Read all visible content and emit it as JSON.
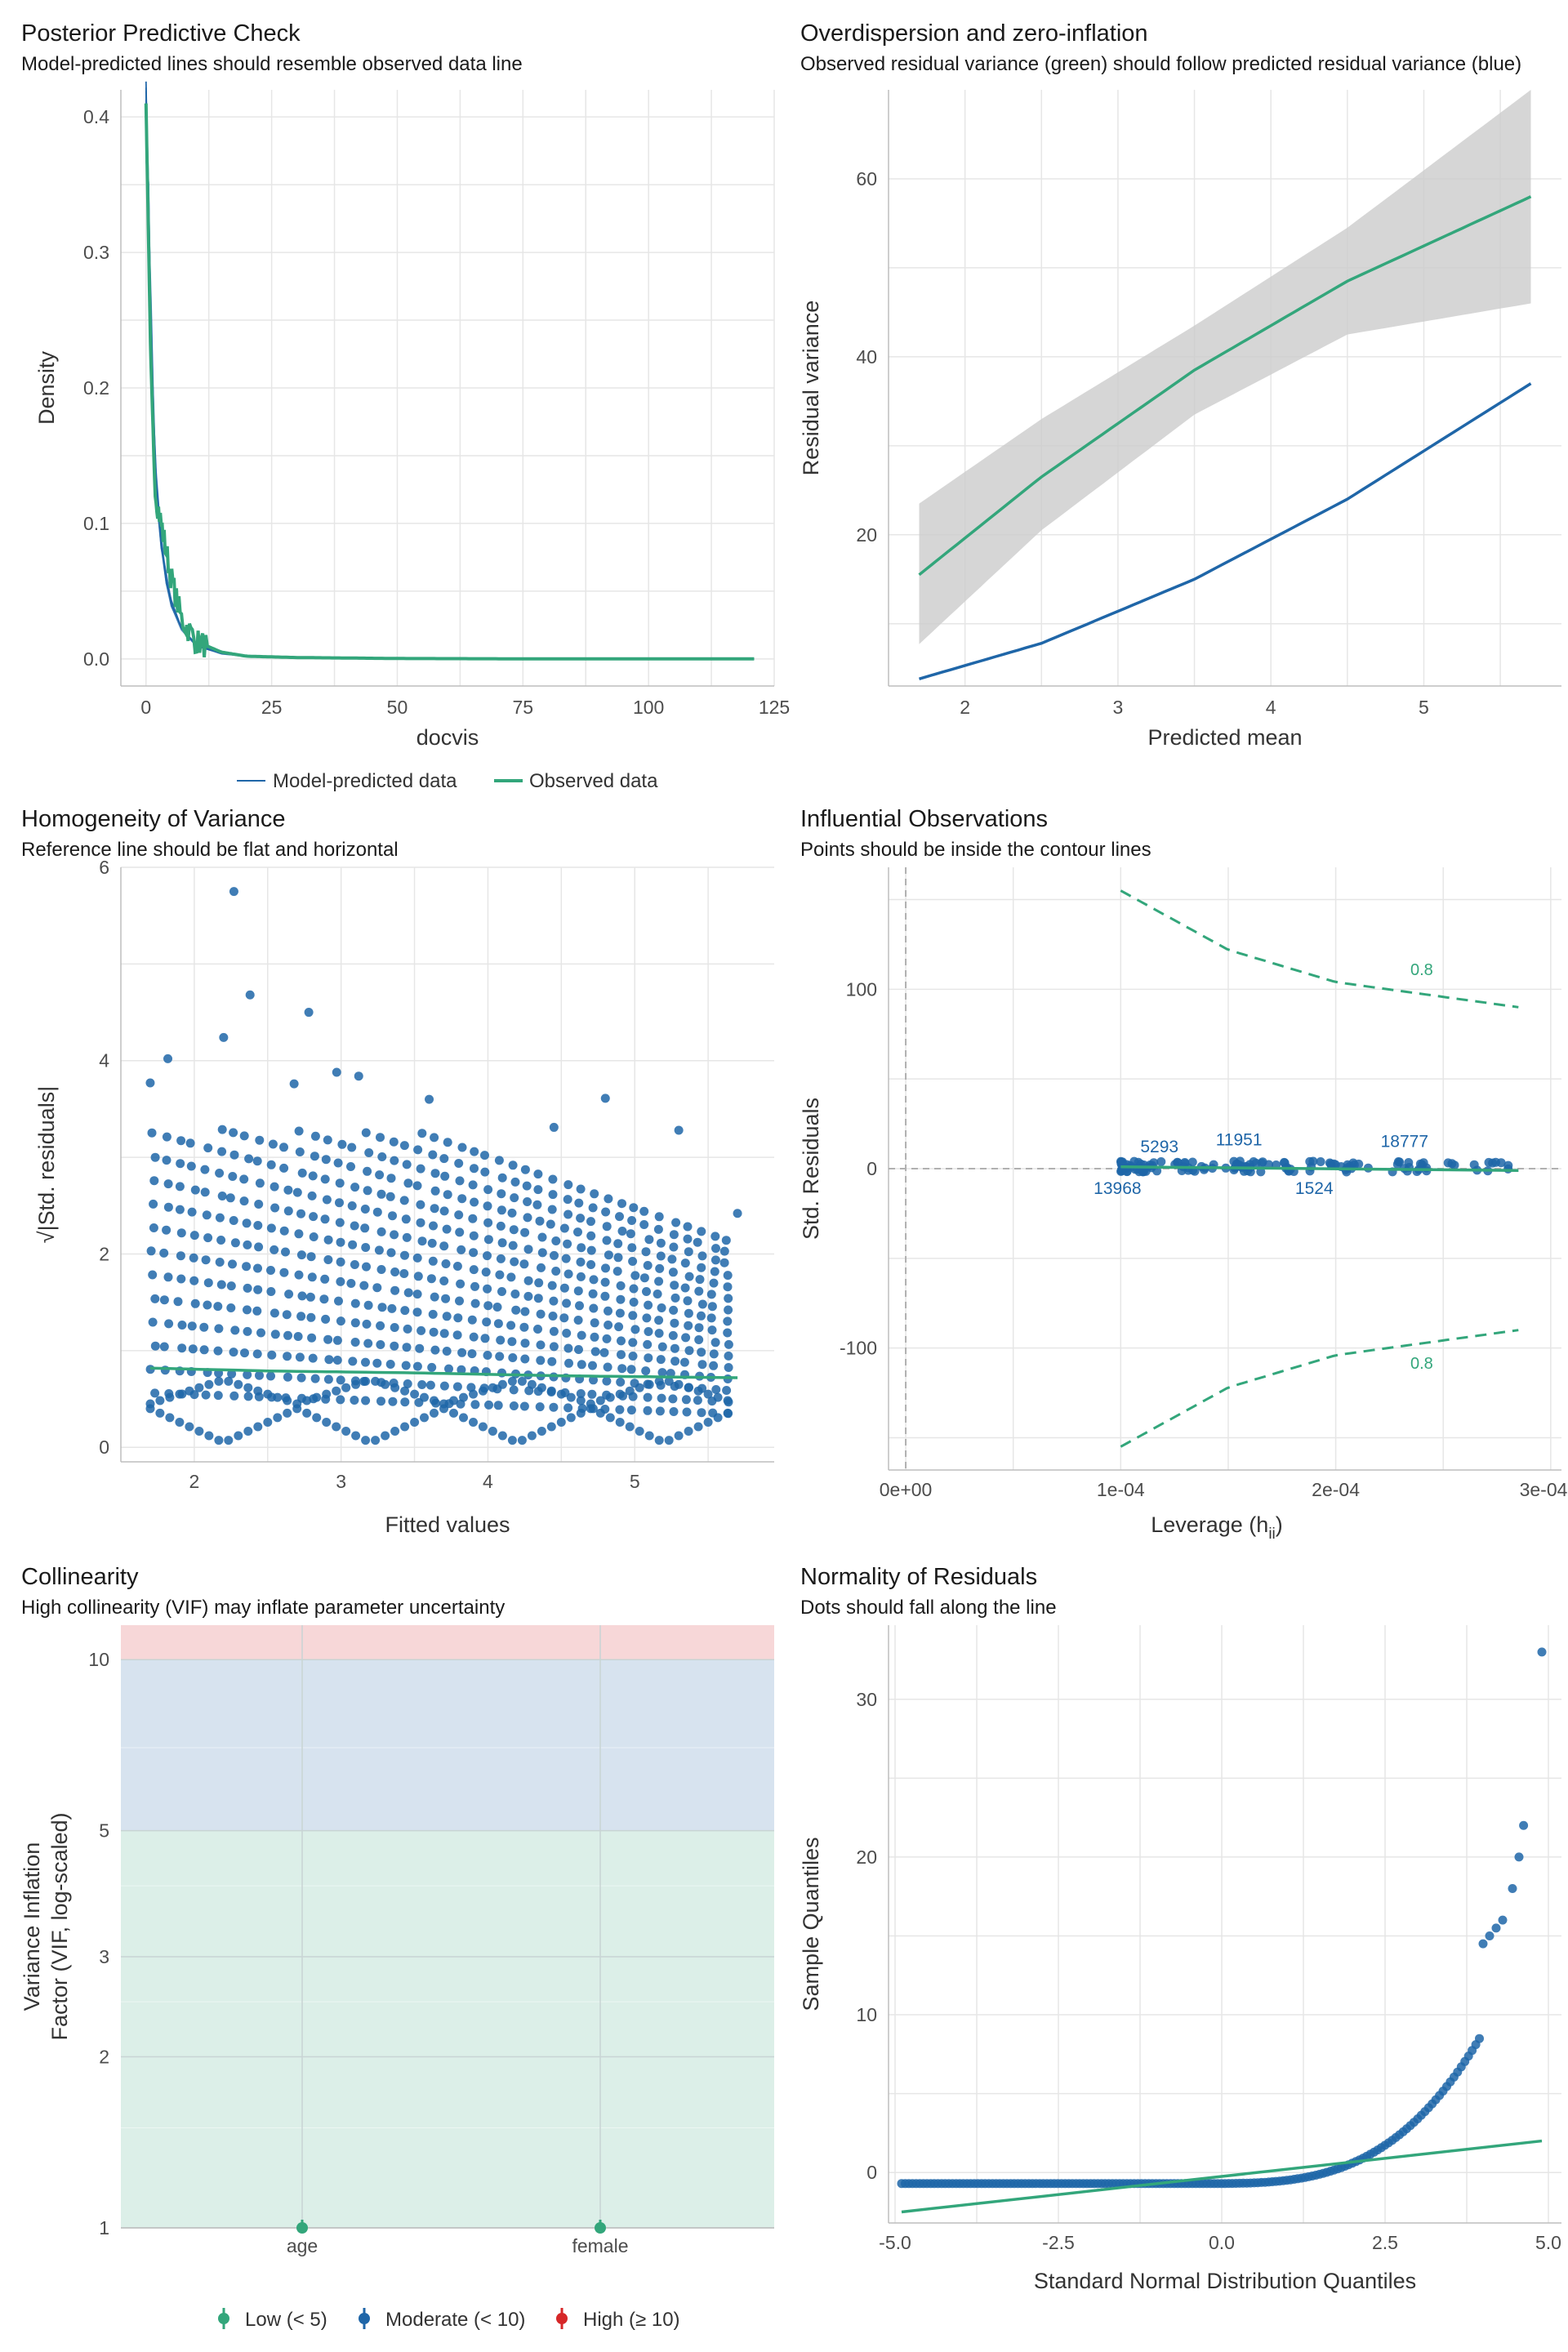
{
  "colors": {
    "blue": "#1f66a8",
    "green": "#33a67b",
    "grey_band": "#cccccc",
    "red": "#d62728"
  },
  "chart_data": [
    {
      "id": "ppc",
      "type": "line",
      "title": "Posterior Predictive Check",
      "subtitle": "Model-predicted lines should resemble observed data line",
      "xlabel": "docvis",
      "ylabel": "Density",
      "xlim": [
        -5,
        125
      ],
      "ylim": [
        -0.02,
        0.42
      ],
      "xticks": [
        "0",
        "25",
        "50",
        "75",
        "100",
        "125"
      ],
      "yticks": [
        "0.0",
        "0.1",
        "0.2",
        "0.3",
        "0.4"
      ],
      "series": [
        {
          "name": "Model-predicted data",
          "x": [
            0,
            0.5,
            1,
            1.5,
            2,
            3,
            4,
            5,
            7,
            10,
            15,
            20,
            30,
            50,
            80,
            121
          ],
          "y": [
            0.4,
            0.33,
            0.25,
            0.18,
            0.13,
            0.085,
            0.06,
            0.042,
            0.022,
            0.01,
            0.004,
            0.002,
            0.0008,
            0.0002,
            0.0,
            0.0
          ]
        },
        {
          "name": "Observed data",
          "x": [
            0,
            0.5,
            1,
            1.5,
            2,
            3,
            4,
            5,
            7,
            10,
            15,
            20,
            30,
            50,
            80,
            121
          ],
          "y": [
            0.41,
            0.31,
            0.21,
            0.15,
            0.12,
            0.1,
            0.08,
            0.06,
            0.03,
            0.013,
            0.005,
            0.002,
            0.001,
            0.0003,
            0.0,
            0.0
          ]
        }
      ],
      "legend": [
        "Model-predicted data",
        "Observed data"
      ]
    },
    {
      "id": "overdispersion",
      "type": "line",
      "title": "Overdispersion and zero-inflation",
      "subtitle": "Observed residual variance (green) should follow predicted residual variance (blue)",
      "xlabel": "Predicted mean",
      "ylabel": "Residual variance",
      "xlim": [
        1.5,
        5.9
      ],
      "ylim": [
        3,
        70
      ],
      "xticks": [
        "2",
        "3",
        "4",
        "5"
      ],
      "yticks": [
        "20",
        "40",
        "60"
      ],
      "series": [
        {
          "name": "Observed residual variance",
          "x": [
            1.7,
            2.5,
            3.5,
            4.5,
            5.7
          ],
          "y": [
            15.5,
            26.5,
            38.5,
            48.5,
            58
          ]
        },
        {
          "name": "Predicted residual variance",
          "x": [
            1.7,
            2.5,
            3.5,
            4.5,
            5.7
          ],
          "y": [
            3.8,
            7.8,
            15.0,
            24.0,
            37.0
          ]
        }
      ],
      "ci_band": {
        "x": [
          1.7,
          2.5,
          3.5,
          4.5,
          5.7
        ],
        "lower": [
          7.7,
          20.5,
          33.5,
          42.5,
          46.0
        ],
        "upper": [
          23.5,
          33.0,
          43.5,
          54.5,
          70.0
        ]
      }
    },
    {
      "id": "homogeneity",
      "type": "scatter",
      "title": "Homogeneity of Variance",
      "subtitle": "Reference line should be flat and horizontal",
      "xlabel": "Fitted values",
      "ylabel": "√|Std. residuals|",
      "xlim": [
        1.5,
        5.95
      ],
      "ylim": [
        -0.15,
        6.0
      ],
      "xticks": [
        "2",
        "3",
        "4",
        "5"
      ],
      "yticks": [
        "0",
        "2",
        "4",
        "6"
      ],
      "outliers": [
        [
          2.27,
          5.75
        ],
        [
          2.38,
          4.68
        ],
        [
          2.2,
          4.24
        ],
        [
          2.78,
          4.5
        ],
        [
          1.82,
          4.02
        ],
        [
          1.7,
          3.77
        ],
        [
          2.97,
          3.88
        ],
        [
          3.12,
          3.84
        ],
        [
          2.68,
          3.76
        ],
        [
          4.8,
          3.61
        ],
        [
          3.6,
          3.6
        ],
        [
          4.45,
          3.31
        ],
        [
          5.3,
          3.28
        ],
        [
          5.7,
          2.42
        ]
      ],
      "reference_line": {
        "x": [
          1.7,
          2.5,
          3.5,
          4.5,
          5.7
        ],
        "y": [
          0.82,
          0.79,
          0.77,
          0.74,
          0.72
        ]
      }
    },
    {
      "id": "influential",
      "type": "scatter",
      "title": "Influential Observations",
      "subtitle": "Points should be inside the contour lines",
      "xlabel": "Leverage (h",
      "xlabel_sub": "ii",
      "xlabel_tail": ")",
      "ylabel": "Std. Residuals",
      "xlim": [
        -8e-06,
        0.000305
      ],
      "ylim": [
        -168,
        168
      ],
      "xticks": [
        "0e+00",
        "1e-04",
        "2e-04",
        "3e-04"
      ],
      "yticks": [
        "-100",
        "0",
        "100"
      ],
      "contour_label": "0.8",
      "contour_upper": {
        "x": [
          0.0001,
          0.00015,
          0.0002,
          0.000285
        ],
        "y": [
          155,
          122,
          104,
          90
        ]
      },
      "contour_lower": {
        "x": [
          0.0001,
          0.00015,
          0.0002,
          0.000285
        ],
        "y": [
          -155,
          -122,
          -104,
          -90
        ]
      },
      "points_x_range": [
        0.0001,
        0.000285
      ],
      "labels": [
        {
          "text": "5293",
          "x": 0.000118,
          "y": 9
        },
        {
          "text": "11951",
          "x": 0.000155,
          "y": 13
        },
        {
          "text": "18777",
          "x": 0.000232,
          "y": 12
        },
        {
          "text": "13968",
          "x": 9.85e-05,
          "y": -6
        },
        {
          "text": "1524",
          "x": 0.00019,
          "y": -6
        }
      ]
    },
    {
      "id": "collinearity",
      "type": "scatter",
      "title": "Collinearity",
      "subtitle": "High collinearity (VIF) may inflate parameter uncertainty",
      "xlabel": "",
      "ylabel": "Variance Inflation",
      "ylabel2": "Factor (VIF, log-scaled)",
      "ylim_log": [
        1,
        11.5
      ],
      "yticks": [
        "1",
        "2",
        "3",
        "5",
        "10"
      ],
      "categories": [
        "age",
        "female"
      ],
      "values": [
        1.0,
        1.0
      ],
      "legend": [
        "Low (< 5)",
        "Moderate (< 10)",
        "High (≥ 10)"
      ]
    },
    {
      "id": "normality",
      "type": "scatter",
      "title": "Normality of Residuals",
      "subtitle": "Dots should fall along the line",
      "xlabel": "Standard Normal Distribution Quantiles",
      "ylabel": "Sample Quantiles",
      "xlim": [
        -5.1,
        5.2
      ],
      "ylim": [
        -3.2,
        34.7
      ],
      "xticks": [
        "-5.0",
        "-2.5",
        "0.0",
        "2.5",
        "5.0"
      ],
      "yticks": [
        "0",
        "10",
        "20",
        "30"
      ],
      "reference_line": {
        "x": [
          -4.9,
          4.9
        ],
        "y": [
          -2.5,
          2.0
        ]
      },
      "upper_tail_points": [
        [
          4.0,
          14.5
        ],
        [
          4.1,
          15.0
        ],
        [
          4.2,
          15.5
        ],
        [
          4.3,
          16.0
        ],
        [
          4.45,
          18.0
        ],
        [
          4.55,
          20.0
        ],
        [
          4.62,
          22.0
        ],
        [
          4.9,
          33.0
        ]
      ]
    }
  ]
}
